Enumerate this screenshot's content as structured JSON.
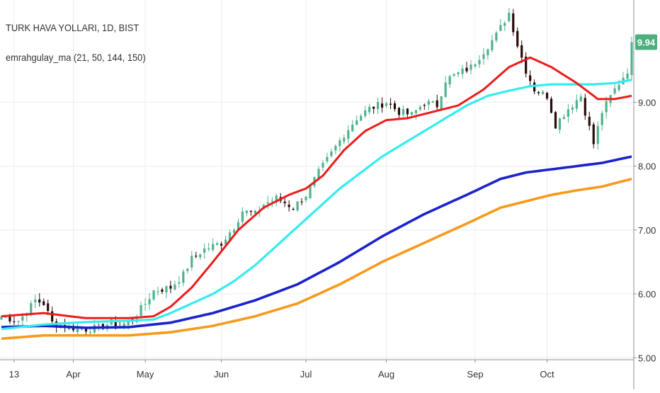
{
  "header": {
    "title": "TURK HAVA YOLLARI, 1D, BIST",
    "indicator": "emrahgulay_ma (21, 50, 144, 150)"
  },
  "price_badge": "9.94",
  "colors": {
    "up": "#4fb38b",
    "down": "#2a0a0a",
    "ma21": "#ee1b1b",
    "ma50": "#35ecee",
    "ma144": "#1b22cc",
    "ma150": "#f79a1c",
    "badge": "#4caf7d",
    "grid": "#e8ecf0",
    "text": "#333333"
  },
  "chart_data": {
    "type": "candlestick",
    "title": "TURK HAVA YOLLARI, 1D, BIST",
    "y_ticks": [
      "5.00",
      "6.00",
      "7.00",
      "8.00",
      "9.00"
    ],
    "x_ticks": [
      "13",
      "Apr",
      "May",
      "Jun",
      "Jul",
      "Aug",
      "Sep",
      "Oct"
    ],
    "ylim": [
      4.97,
      10.6
    ],
    "last_price": 9.94,
    "grid": true,
    "ohlc_anchors": [
      {
        "t": 0,
        "c": 5.65
      },
      {
        "t": 4,
        "c": 5.58
      },
      {
        "t": 6,
        "c": 5.72
      },
      {
        "t": 8,
        "c": 5.9
      },
      {
        "t": 10,
        "c": 5.85
      },
      {
        "t": 12,
        "c": 5.55
      },
      {
        "t": 16,
        "c": 5.48
      },
      {
        "t": 20,
        "c": 5.45
      },
      {
        "t": 23,
        "c": 5.47
      },
      {
        "t": 26,
        "c": 5.55
      },
      {
        "t": 28,
        "c": 5.5
      },
      {
        "t": 31,
        "c": 5.6
      },
      {
        "t": 34,
        "c": 5.85
      },
      {
        "t": 36,
        "c": 6.05
      },
      {
        "t": 40,
        "c": 6.1
      },
      {
        "t": 43,
        "c": 6.3
      },
      {
        "t": 45,
        "c": 6.55
      },
      {
        "t": 48,
        "c": 6.7
      },
      {
        "t": 52,
        "c": 6.8
      },
      {
        "t": 55,
        "c": 7.05
      },
      {
        "t": 57,
        "c": 7.3
      },
      {
        "t": 60,
        "c": 7.25
      },
      {
        "t": 62,
        "c": 7.4
      },
      {
        "t": 65,
        "c": 7.5
      },
      {
        "t": 69,
        "c": 7.35
      },
      {
        "t": 72,
        "c": 7.55
      },
      {
        "t": 75,
        "c": 7.9
      },
      {
        "t": 78,
        "c": 8.2
      },
      {
        "t": 81,
        "c": 8.5
      },
      {
        "t": 84,
        "c": 8.75
      },
      {
        "t": 87,
        "c": 8.9
      },
      {
        "t": 91,
        "c": 9.0
      },
      {
        "t": 94,
        "c": 8.85
      },
      {
        "t": 97,
        "c": 8.8
      },
      {
        "t": 100,
        "c": 9.0
      },
      {
        "t": 103,
        "c": 8.95
      },
      {
        "t": 105,
        "c": 9.35
      },
      {
        "t": 108,
        "c": 9.45
      },
      {
        "t": 111,
        "c": 9.55
      },
      {
        "t": 114,
        "c": 9.8
      },
      {
        "t": 117,
        "c": 10.05
      },
      {
        "t": 120,
        "c": 10.4
      },
      {
        "t": 122,
        "c": 9.9
      },
      {
        "t": 124,
        "c": 9.5
      },
      {
        "t": 126,
        "c": 9.2
      },
      {
        "t": 129,
        "c": 9.1
      },
      {
        "t": 131,
        "c": 8.65
      },
      {
        "t": 134,
        "c": 8.9
      },
      {
        "t": 137,
        "c": 9.1
      },
      {
        "t": 140,
        "c": 8.35
      },
      {
        "t": 142,
        "c": 8.85
      },
      {
        "t": 145,
        "c": 9.2
      },
      {
        "t": 148,
        "c": 9.5
      },
      {
        "t": 149,
        "c": 9.94
      }
    ],
    "series": [
      {
        "name": "21",
        "anchors": [
          [
            0,
            5.65
          ],
          [
            10,
            5.7
          ],
          [
            20,
            5.62
          ],
          [
            30,
            5.62
          ],
          [
            36,
            5.65
          ],
          [
            40,
            5.8
          ],
          [
            45,
            6.1
          ],
          [
            50,
            6.5
          ],
          [
            56,
            7.0
          ],
          [
            62,
            7.35
          ],
          [
            68,
            7.55
          ],
          [
            72,
            7.65
          ],
          [
            76,
            7.85
          ],
          [
            81,
            8.25
          ],
          [
            86,
            8.55
          ],
          [
            91,
            8.72
          ],
          [
            96,
            8.75
          ],
          [
            102,
            8.85
          ],
          [
            108,
            8.95
          ],
          [
            114,
            9.2
          ],
          [
            120,
            9.55
          ],
          [
            125,
            9.7
          ],
          [
            130,
            9.55
          ],
          [
            136,
            9.3
          ],
          [
            141,
            9.05
          ],
          [
            145,
            9.05
          ],
          [
            149,
            9.1
          ]
        ]
      },
      {
        "name": "50",
        "anchors": [
          [
            0,
            5.45
          ],
          [
            10,
            5.52
          ],
          [
            20,
            5.56
          ],
          [
            30,
            5.58
          ],
          [
            36,
            5.6
          ],
          [
            40,
            5.7
          ],
          [
            45,
            5.85
          ],
          [
            50,
            6.0
          ],
          [
            55,
            6.2
          ],
          [
            60,
            6.45
          ],
          [
            65,
            6.75
          ],
          [
            70,
            7.05
          ],
          [
            75,
            7.35
          ],
          [
            80,
            7.65
          ],
          [
            85,
            7.9
          ],
          [
            90,
            8.15
          ],
          [
            95,
            8.35
          ],
          [
            100,
            8.55
          ],
          [
            105,
            8.75
          ],
          [
            110,
            8.95
          ],
          [
            115,
            9.1
          ],
          [
            120,
            9.18
          ],
          [
            125,
            9.25
          ],
          [
            130,
            9.28
          ],
          [
            135,
            9.28
          ],
          [
            140,
            9.28
          ],
          [
            145,
            9.3
          ],
          [
            149,
            9.35
          ]
        ]
      },
      {
        "name": "144",
        "anchors": [
          [
            0,
            5.48
          ],
          [
            10,
            5.5
          ],
          [
            20,
            5.47
          ],
          [
            30,
            5.48
          ],
          [
            40,
            5.55
          ],
          [
            50,
            5.7
          ],
          [
            60,
            5.9
          ],
          [
            70,
            6.15
          ],
          [
            80,
            6.5
          ],
          [
            90,
            6.9
          ],
          [
            100,
            7.25
          ],
          [
            110,
            7.55
          ],
          [
            118,
            7.8
          ],
          [
            124,
            7.9
          ],
          [
            130,
            7.95
          ],
          [
            136,
            8.0
          ],
          [
            142,
            8.05
          ],
          [
            149,
            8.15
          ]
        ]
      },
      {
        "name": "150",
        "anchors": [
          [
            0,
            5.3
          ],
          [
            10,
            5.35
          ],
          [
            20,
            5.35
          ],
          [
            30,
            5.35
          ],
          [
            40,
            5.4
          ],
          [
            50,
            5.5
          ],
          [
            60,
            5.65
          ],
          [
            70,
            5.85
          ],
          [
            80,
            6.15
          ],
          [
            90,
            6.5
          ],
          [
            100,
            6.8
          ],
          [
            110,
            7.1
          ],
          [
            118,
            7.35
          ],
          [
            124,
            7.45
          ],
          [
            130,
            7.55
          ],
          [
            136,
            7.62
          ],
          [
            142,
            7.68
          ],
          [
            149,
            7.8
          ]
        ]
      }
    ]
  }
}
